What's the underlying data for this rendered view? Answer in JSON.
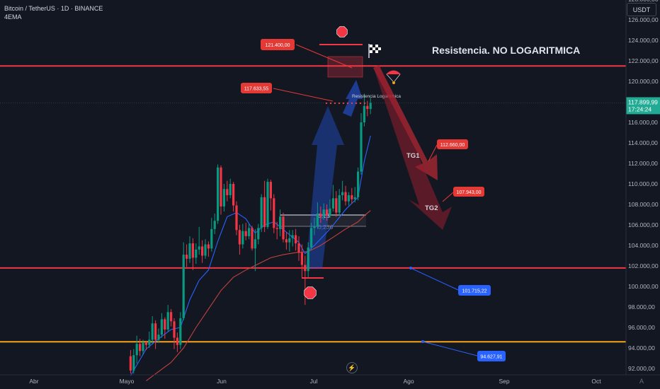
{
  "header": {
    "symbol_line": "Bitcoin / TetherUS · 1D · BINANCE",
    "indicator": "4EMA"
  },
  "currency_button": "USDT",
  "price_axis_button_icon": "lightning-icon",
  "colors": {
    "background": "#131722",
    "up_candle": "#089981",
    "down_candle": "#f23645",
    "resistance_line": "#f23645",
    "support_line_orange": "#f7a21b",
    "ema_fast": "#2962ff",
    "ema_slow": "#c2413b",
    "price_label_bg": "#22ab94",
    "label_red": "#e53935",
    "label_blue": "#2962ff"
  },
  "chart_data": {
    "type": "candlestick",
    "symbol": "Bitcoin / TetherUS · 1D · BINANCE",
    "x_ticks": [
      "Abr",
      "Mayo",
      "Jun",
      "Jul",
      "Ago",
      "Sep",
      "Oct"
    ],
    "y_ticks": [
      "92.000,00",
      "94.000,00",
      "96.000,00",
      "98.000,00",
      "100.000,00",
      "102.000,00",
      "104.000,00",
      "106.000,00",
      "108.000,00",
      "110.000,00",
      "112.000,00",
      "114.000,00",
      "116.000,00",
      "118.000,00",
      "120.000,00",
      "122.000,00",
      "124.000,00",
      "126.000,00",
      "128.000,00"
    ],
    "ylim": [
      91500,
      129200
    ],
    "current_price": {
      "value": "117.899,99",
      "countdown": "17:24:24",
      "raw": 117900
    },
    "horizontal_lines": [
      {
        "name": "resistance",
        "y": 121500,
        "color": "#f23645"
      },
      {
        "name": "support",
        "y": 101800,
        "color": "#f23645"
      },
      {
        "name": "support2",
        "y": 94600,
        "color": "#f7a21b"
      }
    ],
    "candles": [
      {
        "day": 31,
        "o": 93200,
        "c": 91800,
        "h": 93800,
        "l": 91500
      },
      {
        "day": 32,
        "o": 91800,
        "c": 93300,
        "h": 93900,
        "l": 91500
      },
      {
        "day": 33,
        "o": 93300,
        "c": 94400,
        "h": 95200,
        "l": 92500
      },
      {
        "day": 34,
        "o": 94400,
        "c": 93700,
        "h": 94900,
        "l": 93200
      },
      {
        "day": 35,
        "o": 93700,
        "c": 94500,
        "h": 94800,
        "l": 93300
      },
      {
        "day": 36,
        "o": 94500,
        "c": 94300,
        "h": 94700,
        "l": 93800
      },
      {
        "day": 37,
        "o": 94300,
        "c": 94800,
        "h": 95600,
        "l": 94000
      },
      {
        "day": 38,
        "o": 94800,
        "c": 96400,
        "h": 97100,
        "l": 94400
      },
      {
        "day": 39,
        "o": 96400,
        "c": 94800,
        "h": 96700,
        "l": 93900
      },
      {
        "day": 40,
        "o": 94800,
        "c": 95300,
        "h": 95900,
        "l": 94500
      },
      {
        "day": 41,
        "o": 95300,
        "c": 96800,
        "h": 97400,
        "l": 95000
      },
      {
        "day": 42,
        "o": 96800,
        "c": 95800,
        "h": 97000,
        "l": 94900
      },
      {
        "day": 43,
        "o": 95800,
        "c": 97500,
        "h": 98200,
        "l": 95600
      },
      {
        "day": 44,
        "o": 97500,
        "c": 96600,
        "h": 97800,
        "l": 96100
      },
      {
        "day": 45,
        "o": 96600,
        "c": 95000,
        "h": 96900,
        "l": 93900
      },
      {
        "day": 46,
        "o": 95000,
        "c": 94300,
        "h": 95500,
        "l": 93600
      },
      {
        "day": 47,
        "o": 94300,
        "c": 96900,
        "h": 97500,
        "l": 93900
      },
      {
        "day": 48,
        "o": 96900,
        "c": 103100,
        "h": 104300,
        "l": 96700
      },
      {
        "day": 49,
        "o": 103100,
        "c": 102700,
        "h": 104100,
        "l": 101900
      },
      {
        "day": 50,
        "o": 102700,
        "c": 104200,
        "h": 104900,
        "l": 102300
      },
      {
        "day": 51,
        "o": 104200,
        "c": 102800,
        "h": 104700,
        "l": 101600
      },
      {
        "day": 52,
        "o": 102800,
        "c": 103600,
        "h": 104200,
        "l": 102200
      },
      {
        "day": 53,
        "o": 103600,
        "c": 103900,
        "h": 105800,
        "l": 103100
      },
      {
        "day": 54,
        "o": 103900,
        "c": 103000,
        "h": 104500,
        "l": 102300
      },
      {
        "day": 55,
        "o": 103000,
        "c": 104100,
        "h": 104600,
        "l": 102700
      },
      {
        "day": 56,
        "o": 104100,
        "c": 103700,
        "h": 104400,
        "l": 102900
      },
      {
        "day": 57,
        "o": 103700,
        "c": 105600,
        "h": 106700,
        "l": 103400
      },
      {
        "day": 58,
        "o": 105600,
        "c": 106400,
        "h": 107100,
        "l": 105100
      },
      {
        "day": 59,
        "o": 106400,
        "c": 111600,
        "h": 111900,
        "l": 106100
      },
      {
        "day": 60,
        "o": 111600,
        "c": 107800,
        "h": 111800,
        "l": 107000
      },
      {
        "day": 61,
        "o": 107800,
        "c": 109500,
        "h": 110000,
        "l": 107300
      },
      {
        "day": 62,
        "o": 109500,
        "c": 108900,
        "h": 110300,
        "l": 108300
      },
      {
        "day": 63,
        "o": 108900,
        "c": 110000,
        "h": 110500,
        "l": 108600
      },
      {
        "day": 64,
        "o": 110000,
        "c": 107900,
        "h": 110200,
        "l": 107300
      },
      {
        "day": 65,
        "o": 107900,
        "c": 105500,
        "h": 108300,
        "l": 105000
      },
      {
        "day": 66,
        "o": 105500,
        "c": 104100,
        "h": 106000,
        "l": 103100
      },
      {
        "day": 67,
        "o": 104100,
        "c": 105400,
        "h": 106100,
        "l": 103700
      },
      {
        "day": 68,
        "o": 105400,
        "c": 104900,
        "h": 106200,
        "l": 104500
      },
      {
        "day": 69,
        "o": 104900,
        "c": 105700,
        "h": 106100,
        "l": 104600
      },
      {
        "day": 70,
        "o": 105700,
        "c": 103700,
        "h": 105900,
        "l": 103500
      },
      {
        "day": 71,
        "o": 103700,
        "c": 104600,
        "h": 105600,
        "l": 101500
      },
      {
        "day": 72,
        "o": 104600,
        "c": 105700,
        "h": 106100,
        "l": 104100
      },
      {
        "day": 73,
        "o": 105700,
        "c": 108700,
        "h": 109000,
        "l": 105300
      },
      {
        "day": 74,
        "o": 108700,
        "c": 105800,
        "h": 110300,
        "l": 105300
      },
      {
        "day": 75,
        "o": 105800,
        "c": 110200,
        "h": 110500,
        "l": 105600
      },
      {
        "day": 76,
        "o": 110200,
        "c": 108600,
        "h": 110400,
        "l": 107400
      },
      {
        "day": 77,
        "o": 108600,
        "c": 105700,
        "h": 109000,
        "l": 105200
      },
      {
        "day": 78,
        "o": 105700,
        "c": 105600,
        "h": 106300,
        "l": 104600
      },
      {
        "day": 79,
        "o": 105600,
        "c": 106800,
        "h": 107500,
        "l": 104900
      },
      {
        "day": 80,
        "o": 106800,
        "c": 104600,
        "h": 107200,
        "l": 104300
      },
      {
        "day": 81,
        "o": 104600,
        "c": 104300,
        "h": 105300,
        "l": 103600
      },
      {
        "day": 82,
        "o": 104300,
        "c": 104700,
        "h": 105500,
        "l": 103400
      },
      {
        "day": 83,
        "o": 104700,
        "c": 105000,
        "h": 105500,
        "l": 103900
      },
      {
        "day": 84,
        "o": 105000,
        "c": 104200,
        "h": 105600,
        "l": 103500
      },
      {
        "day": 85,
        "o": 104200,
        "c": 103300,
        "h": 104900,
        "l": 102500
      },
      {
        "day": 86,
        "o": 103300,
        "c": 102100,
        "h": 104100,
        "l": 100900
      },
      {
        "day": 87,
        "o": 102100,
        "c": 101500,
        "h": 103000,
        "l": 98200
      },
      {
        "day": 88,
        "o": 101500,
        "c": 103800,
        "h": 104300,
        "l": 100800
      },
      {
        "day": 89,
        "o": 103800,
        "c": 105700,
        "h": 106200,
        "l": 103600
      },
      {
        "day": 90,
        "o": 105700,
        "c": 105900,
        "h": 106700,
        "l": 105000
      },
      {
        "day": 91,
        "o": 105900,
        "c": 107100,
        "h": 108200,
        "l": 105600
      },
      {
        "day": 92,
        "o": 107100,
        "c": 106800,
        "h": 107800,
        "l": 106200
      },
      {
        "day": 93,
        "o": 106800,
        "c": 107500,
        "h": 108100,
        "l": 106500
      },
      {
        "day": 94,
        "o": 107500,
        "c": 106900,
        "h": 108000,
        "l": 106400
      },
      {
        "day": 95,
        "o": 106900,
        "c": 107600,
        "h": 108500,
        "l": 106700
      },
      {
        "day": 96,
        "o": 107600,
        "c": 108600,
        "h": 109900,
        "l": 107300
      },
      {
        "day": 97,
        "o": 108600,
        "c": 107200,
        "h": 109300,
        "l": 106800
      },
      {
        "day": 98,
        "o": 107200,
        "c": 108900,
        "h": 109500,
        "l": 106900
      },
      {
        "day": 99,
        "o": 108900,
        "c": 109200,
        "h": 110300,
        "l": 108400
      },
      {
        "day": 100,
        "o": 109200,
        "c": 108300,
        "h": 109800,
        "l": 107900
      },
      {
        "day": 101,
        "o": 108300,
        "c": 108900,
        "h": 109200,
        "l": 107900
      },
      {
        "day": 102,
        "o": 108900,
        "c": 108500,
        "h": 109600,
        "l": 108100
      },
      {
        "day": 103,
        "o": 108500,
        "c": 108700,
        "h": 109700,
        "l": 108200
      },
      {
        "day": 104,
        "o": 108700,
        "c": 111200,
        "h": 111600,
        "l": 108400
      },
      {
        "day": 105,
        "o": 111200,
        "c": 116000,
        "h": 116900,
        "l": 110900
      },
      {
        "day": 106,
        "o": 116000,
        "c": 117600,
        "h": 118800,
        "l": 115600
      },
      {
        "day": 107,
        "o": 117600,
        "c": 117300,
        "h": 118100,
        "l": 116600
      },
      {
        "day": 108,
        "o": 117300,
        "c": 117900,
        "h": 118400,
        "l": 116800
      }
    ],
    "ema_fast": [
      [
        31,
        91300
      ],
      [
        36,
        93900
      ],
      [
        40,
        94900
      ],
      [
        44,
        95800
      ],
      [
        47,
        96000
      ],
      [
        50,
        98700
      ],
      [
        53,
        100600
      ],
      [
        56,
        101600
      ],
      [
        59,
        104400
      ],
      [
        62,
        106800
      ],
      [
        65,
        107200
      ],
      [
        68,
        106600
      ],
      [
        71,
        105200
      ],
      [
        74,
        106000
      ],
      [
        77,
        106300
      ],
      [
        81,
        105300
      ],
      [
        85,
        104300
      ],
      [
        87,
        103200
      ],
      [
        90,
        104000
      ],
      [
        95,
        105600
      ],
      [
        100,
        107500
      ],
      [
        104,
        108700
      ],
      [
        106,
        112200
      ],
      [
        108,
        114700
      ]
    ],
    "ema_slow": [
      [
        36,
        90800
      ],
      [
        40,
        91700
      ],
      [
        44,
        92600
      ],
      [
        48,
        94000
      ],
      [
        52,
        96000
      ],
      [
        56,
        97800
      ],
      [
        60,
        99600
      ],
      [
        64,
        100900
      ],
      [
        68,
        101600
      ],
      [
        72,
        102200
      ],
      [
        76,
        102800
      ],
      [
        80,
        103100
      ],
      [
        84,
        103300
      ],
      [
        88,
        103400
      ],
      [
        92,
        104000
      ],
      [
        96,
        104800
      ],
      [
        100,
        105600
      ],
      [
        104,
        106300
      ],
      [
        106,
        106900
      ],
      [
        108,
        107400
      ]
    ],
    "annotations": {
      "title": "Resistencia. NO LOGARITMICA",
      "log_resistance": "Resistencia Logaritmica",
      "labels": [
        {
          "text": "121.400,00",
          "color": "red"
        },
        {
          "text": "117.633,55",
          "color": "red"
        },
        {
          "text": "112.660,00",
          "color": "red"
        },
        {
          "text": "107.943,00",
          "color": "red"
        },
        {
          "text": "101.715,22",
          "color": "blue"
        },
        {
          "text": "94.627,91",
          "color": "blue"
        }
      ],
      "targets": [
        "TG1",
        "TG2"
      ],
      "fib": [
        "0,13",
        "0,236"
      ]
    }
  }
}
